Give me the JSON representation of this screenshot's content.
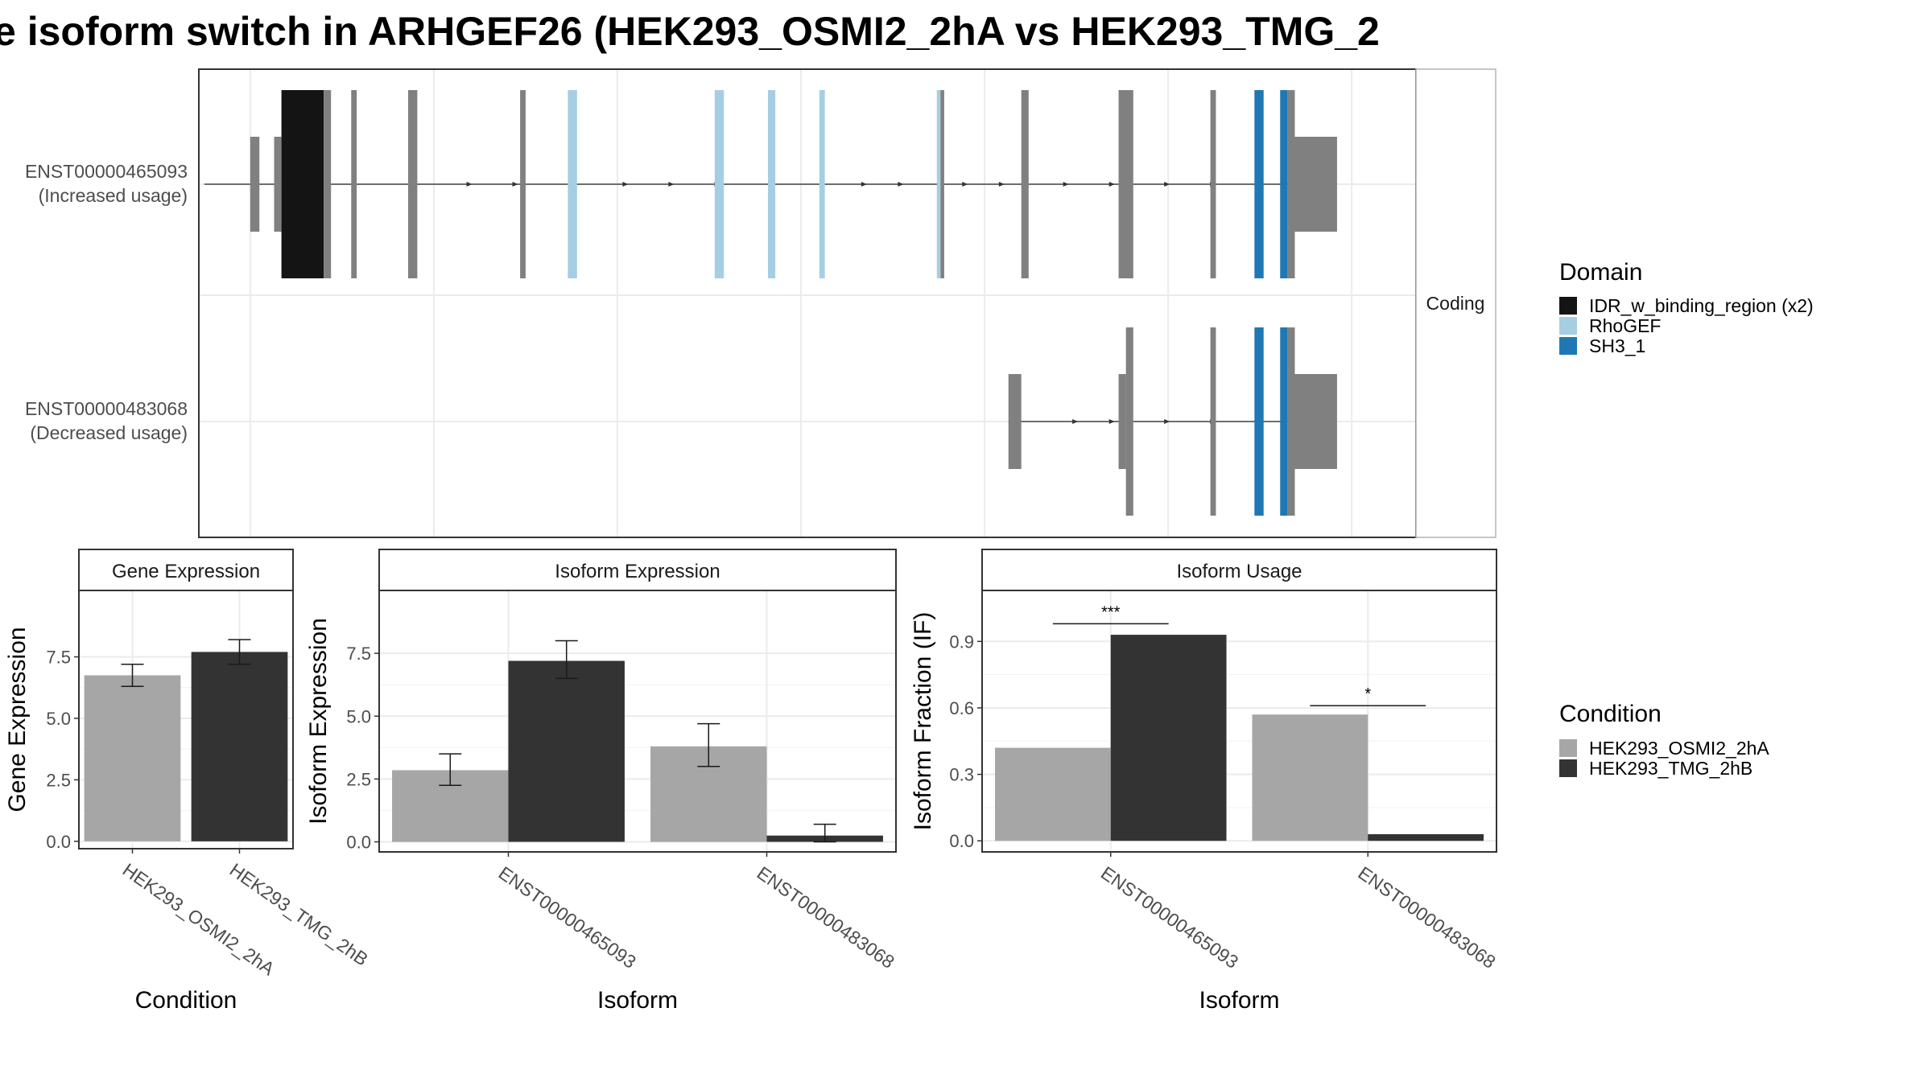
{
  "title": "e isoform switch in ARHGEF26 (HEK293_OSMI2_2hA vs HEK293_TMG_2",
  "colors": {
    "cond_a": "#A6A6A6",
    "cond_b": "#333333",
    "exon": "#808080",
    "idr": "#141414",
    "rhogef": "#A6CEE3",
    "sh3": "#1F78B4",
    "panel_border": "#333333",
    "grid": "#EBEBEB"
  },
  "chart_data": [
    {
      "type": "gene-structure",
      "facet_label": "Coding",
      "transcripts": [
        {
          "id": "ENST00000465093",
          "usage": "(Increased usage)",
          "span": [
            -0.25,
            5.8
          ],
          "arrows": [
            1.2,
            1.45,
            2.05,
            2.3,
            2.55,
            3.35,
            3.55,
            3.9,
            4.1,
            4.45,
            4.7,
            5.0,
            5.25
          ],
          "exons": [
            {
              "start": 0.0,
              "end": 0.05,
              "kind": "utr"
            },
            {
              "start": 0.13,
              "end": 0.17,
              "kind": "utr"
            },
            {
              "start": 0.17,
              "end": 0.4,
              "kind": "idr"
            },
            {
              "start": 0.4,
              "end": 0.44,
              "kind": "cds"
            },
            {
              "start": 0.55,
              "end": 0.58,
              "kind": "cds"
            },
            {
              "start": 0.86,
              "end": 0.91,
              "kind": "cds"
            },
            {
              "start": 1.47,
              "end": 1.5,
              "kind": "cds"
            },
            {
              "start": 1.73,
              "end": 1.78,
              "kind": "rhogef"
            },
            {
              "start": 2.53,
              "end": 2.58,
              "kind": "rhogef"
            },
            {
              "start": 2.82,
              "end": 2.86,
              "kind": "rhogef"
            },
            {
              "start": 3.1,
              "end": 3.13,
              "kind": "rhogef"
            },
            {
              "start": 3.74,
              "end": 3.76,
              "kind": "rhogef"
            },
            {
              "start": 3.76,
              "end": 3.78,
              "kind": "cds"
            },
            {
              "start": 4.2,
              "end": 4.24,
              "kind": "cds"
            },
            {
              "start": 4.73,
              "end": 4.81,
              "kind": "cds"
            },
            {
              "start": 5.23,
              "end": 5.26,
              "kind": "cds"
            },
            {
              "start": 5.47,
              "end": 5.52,
              "kind": "sh3"
            },
            {
              "start": 5.61,
              "end": 5.65,
              "kind": "sh3"
            },
            {
              "start": 5.65,
              "end": 5.69,
              "kind": "cds"
            },
            {
              "start": 5.69,
              "end": 5.92,
              "kind": "utr"
            }
          ]
        },
        {
          "id": "ENST00000483068",
          "usage": "(Decreased usage)",
          "span": [
            4.13,
            5.8
          ],
          "arrows": [
            4.5,
            4.7,
            5.0,
            5.25
          ],
          "exons": [
            {
              "start": 4.13,
              "end": 4.2,
              "kind": "utr"
            },
            {
              "start": 4.73,
              "end": 4.77,
              "kind": "utr"
            },
            {
              "start": 4.77,
              "end": 4.81,
              "kind": "cds"
            },
            {
              "start": 5.23,
              "end": 5.26,
              "kind": "cds"
            },
            {
              "start": 5.47,
              "end": 5.52,
              "kind": "sh3"
            },
            {
              "start": 5.61,
              "end": 5.65,
              "kind": "sh3"
            },
            {
              "start": 5.65,
              "end": 5.69,
              "kind": "cds"
            },
            {
              "start": 5.69,
              "end": 5.92,
              "kind": "utr"
            }
          ]
        }
      ],
      "x_range": [
        -0.28,
        6.35
      ],
      "legend": {
        "title": "Domain",
        "entries": [
          {
            "label": "IDR_w_binding_region (x2)",
            "kind": "idr"
          },
          {
            "label": "RhoGEF",
            "kind": "rhogef"
          },
          {
            "label": "SH3_1",
            "kind": "sh3"
          }
        ]
      }
    },
    {
      "type": "bar",
      "title": "Gene Expression",
      "xlabel": "Condition",
      "ylabel": "Gene Expression",
      "ylim": [
        -0.3,
        10.2
      ],
      "yticks": [
        0.0,
        2.5,
        5.0,
        7.5
      ],
      "ytick_labels": [
        "0.0",
        "2.5",
        "5.0",
        "7.5"
      ],
      "categories": [
        "HEK293_OSMI2_2hA",
        "HEK293_TMG_2hB"
      ],
      "bars": [
        {
          "category": "HEK293_OSMI2_2hA",
          "cond": "a",
          "value": 6.75,
          "err": [
            6.3,
            7.2
          ]
        },
        {
          "category": "HEK293_TMG_2hB",
          "cond": "b",
          "value": 7.7,
          "err": [
            7.2,
            8.2
          ]
        }
      ]
    },
    {
      "type": "bar",
      "title": "Isoform Expression",
      "xlabel": "Isoform",
      "ylabel": "Isoform Expression",
      "ylim": [
        -0.4,
        10.0
      ],
      "yticks": [
        0.0,
        2.5,
        5.0,
        7.5
      ],
      "ytick_labels": [
        "0.0",
        "2.5",
        "5.0",
        "7.5"
      ],
      "categories": [
        "ENST00000465093",
        "ENST00000483068"
      ],
      "series": [
        {
          "name": "HEK293_OSMI2_2hA",
          "values": [
            2.85,
            3.8
          ],
          "err": [
            [
              2.25,
              3.5
            ],
            [
              3.0,
              4.7
            ]
          ]
        },
        {
          "name": "HEK293_TMG_2hB",
          "values": [
            7.2,
            0.25
          ],
          "err": [
            [
              6.5,
              8.0
            ],
            [
              0.0,
              0.7
            ]
          ]
        }
      ]
    },
    {
      "type": "bar",
      "title": "Isoform Usage",
      "xlabel": "Isoform",
      "ylabel": "Isoform Fraction (IF)",
      "ylim": [
        -0.05,
        1.13
      ],
      "yticks": [
        0.0,
        0.3,
        0.6,
        0.9
      ],
      "ytick_labels": [
        "0.0",
        "0.3",
        "0.6",
        "0.9"
      ],
      "categories": [
        "ENST00000465093",
        "ENST00000483068"
      ],
      "series": [
        {
          "name": "HEK293_OSMI2_2hA",
          "values": [
            0.42,
            0.57
          ]
        },
        {
          "name": "HEK293_TMG_2hB",
          "values": [
            0.93,
            0.03
          ]
        }
      ],
      "significance": [
        {
          "category": "ENST00000465093",
          "label": "***",
          "y": 0.98
        },
        {
          "category": "ENST00000483068",
          "label": "*",
          "y": 0.61
        }
      ]
    }
  ],
  "condition_legend": {
    "title": "Condition",
    "entries": [
      {
        "label": "HEK293_OSMI2_2hA",
        "cond": "a"
      },
      {
        "label": "HEK293_TMG_2hB",
        "cond": "b"
      }
    ]
  }
}
